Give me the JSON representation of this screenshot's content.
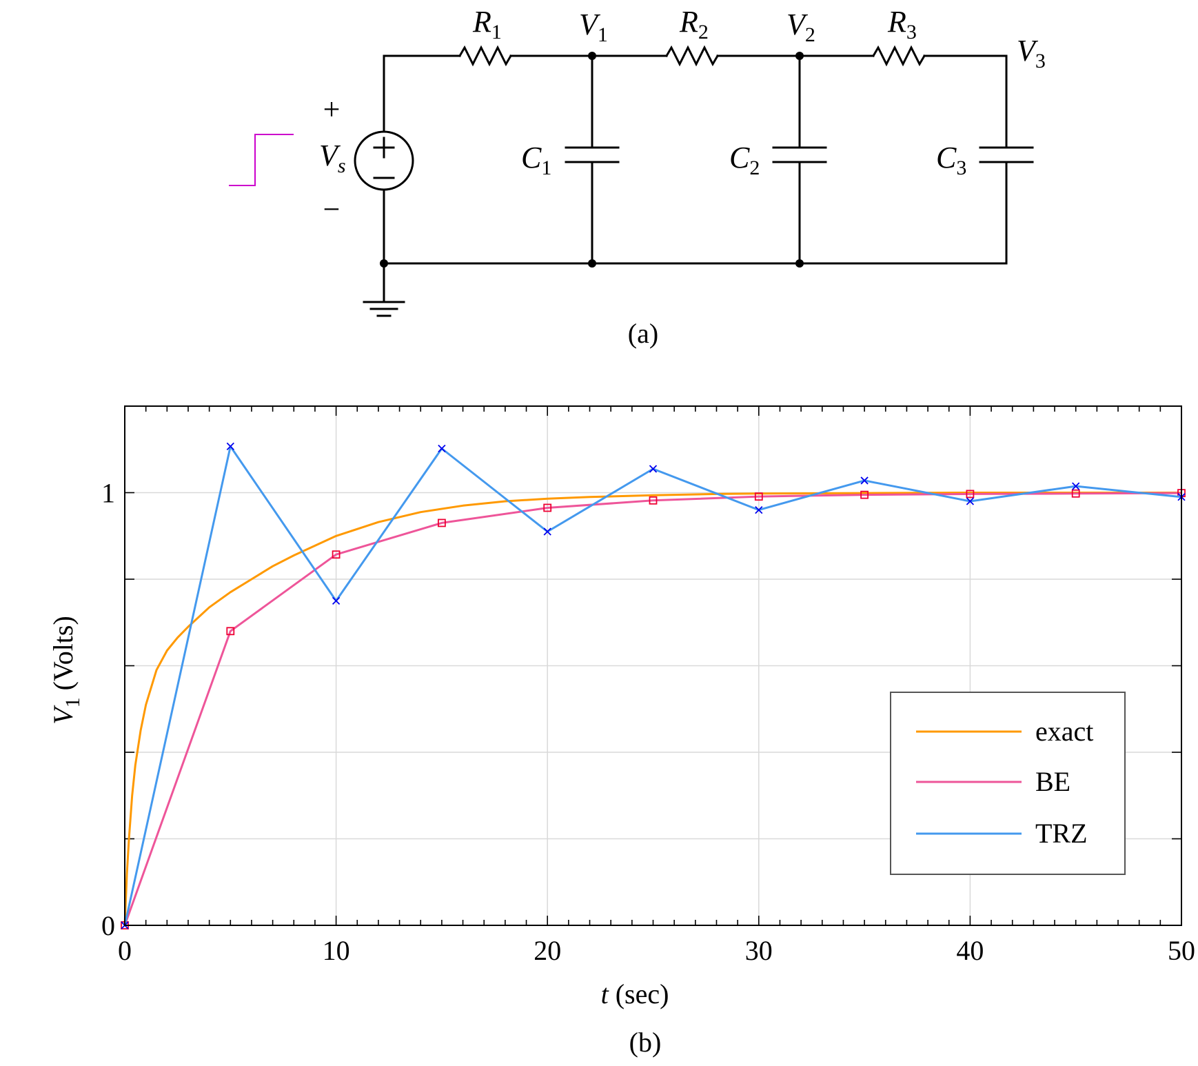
{
  "figure": {
    "caption_a": "(a)",
    "caption_b": "(b)"
  },
  "circuit": {
    "source": {
      "label": "V",
      "sub": "s",
      "plus": "+",
      "minus": "−"
    },
    "resistors": [
      {
        "label": "R",
        "sub": "1"
      },
      {
        "label": "R",
        "sub": "2"
      },
      {
        "label": "R",
        "sub": "3"
      }
    ],
    "capacitors": [
      {
        "label": "C",
        "sub": "1"
      },
      {
        "label": "C",
        "sub": "2"
      },
      {
        "label": "C",
        "sub": "3"
      }
    ],
    "nodes": [
      {
        "label": "V",
        "sub": "1"
      },
      {
        "label": "V",
        "sub": "2"
      },
      {
        "label": "V",
        "sub": "3"
      }
    ],
    "step_color": "#cc00cc"
  },
  "chart_data": {
    "type": "line",
    "xlabel": {
      "var": "t",
      "rest": " (sec)"
    },
    "ylabel": {
      "var": "V",
      "sub": "1",
      "rest": " (Volts)"
    },
    "xlim": [
      0,
      50
    ],
    "ylim": [
      0,
      1.2
    ],
    "xticks": [
      0,
      10,
      20,
      30,
      40,
      50
    ],
    "yticks_labeled": [
      0,
      1
    ],
    "y_gridlines": [
      0.2,
      0.4,
      0.6,
      0.8,
      1.0
    ],
    "grid": true,
    "legend_position": "lower-right",
    "series": [
      {
        "name": "exact",
        "color": "#ff9900",
        "marker": "none",
        "x": [
          0,
          0.1,
          0.2,
          0.35,
          0.5,
          0.75,
          1,
          1.5,
          2,
          2.5,
          3,
          4,
          5,
          6,
          7,
          8,
          10,
          12,
          14,
          16,
          18,
          20,
          22,
          25,
          28,
          30,
          35,
          40,
          45,
          50
        ],
        "y": [
          0,
          0.12,
          0.2,
          0.3,
          0.37,
          0.45,
          0.51,
          0.59,
          0.635,
          0.665,
          0.69,
          0.735,
          0.77,
          0.8,
          0.83,
          0.855,
          0.9,
          0.932,
          0.955,
          0.97,
          0.98,
          0.986,
          0.99,
          0.994,
          0.997,
          0.998,
          0.999,
          1.0,
          1.0,
          1.0
        ]
      },
      {
        "name": "BE",
        "color": "#ee5599",
        "marker": "square",
        "marker_color": "#ee0033",
        "x": [
          0,
          5,
          10,
          15,
          20,
          25,
          30,
          35,
          40,
          45,
          50
        ],
        "y": [
          0,
          0.68,
          0.857,
          0.93,
          0.965,
          0.982,
          0.991,
          0.995,
          0.997,
          0.998,
          0.999
        ]
      },
      {
        "name": "TRZ",
        "color": "#4499ee",
        "marker": "x",
        "marker_color": "#0000ee",
        "x": [
          0,
          5,
          10,
          15,
          20,
          25,
          30,
          35,
          40,
          45,
          50
        ],
        "y": [
          0,
          1.107,
          0.75,
          1.102,
          0.91,
          1.055,
          0.96,
          1.028,
          0.98,
          1.015,
          0.99
        ]
      }
    ]
  }
}
